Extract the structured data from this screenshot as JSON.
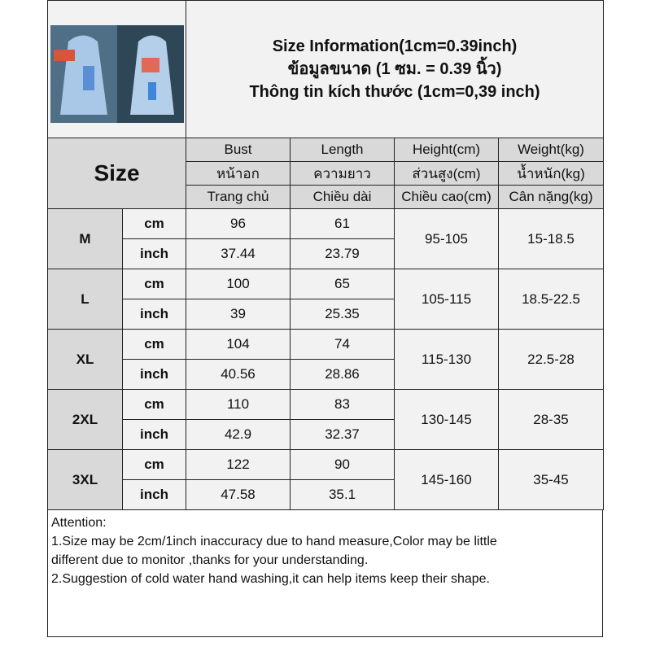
{
  "title_lines": [
    "Size Information(1cm=0.39inch)",
    "ข้อมูลขนาด (1 ซม. = 0.39 นิ้ว)",
    "Thông tin kích thước (1cm=0,39 inch)"
  ],
  "image": {
    "description": "product-photo-raincoat"
  },
  "size_label": "Size",
  "headers": [
    [
      "Bust",
      "หน้าอก",
      "Trang chủ"
    ],
    [
      "Length",
      "ความยาว",
      "Chiều dài"
    ],
    [
      "Height(cm)",
      "ส่วนสูง(cm)",
      "Chiều cao(cm)"
    ],
    [
      "Weight(kg)",
      "น้ำหนัก(kg)",
      "Cân nặng(kg)"
    ]
  ],
  "unit_cm": "cm",
  "unit_inch": "inch",
  "rows": [
    {
      "size": "M",
      "bust_cm": "96",
      "length_cm": "61",
      "bust_in": "37.44",
      "length_in": "23.79",
      "height": "95-105",
      "weight": "15-18.5"
    },
    {
      "size": "L",
      "bust_cm": "100",
      "length_cm": "65",
      "bust_in": "39",
      "length_in": "25.35",
      "height": "105-115",
      "weight": "18.5-22.5"
    },
    {
      "size": "XL",
      "bust_cm": "104",
      "length_cm": "74",
      "bust_in": "40.56",
      "length_in": "28.86",
      "height": "115-130",
      "weight": "22.5-28"
    },
    {
      "size": "2XL",
      "bust_cm": "110",
      "length_cm": "83",
      "bust_in": "42.9",
      "length_in": "32.37",
      "height": "130-145",
      "weight": "28-35"
    },
    {
      "size": "3XL",
      "bust_cm": "122",
      "length_cm": "90",
      "bust_in": "47.58",
      "length_in": "35.1",
      "height": "145-160",
      "weight": "35-45"
    }
  ],
  "attention": [
    "Attention:",
    "1.Size may be 2cm/1inch inaccuracy due to hand measure,Color may be little",
    "different due to monitor ,thanks for your understanding.",
    "2.Suggestion of cold water hand washing,it can help items keep their shape."
  ]
}
